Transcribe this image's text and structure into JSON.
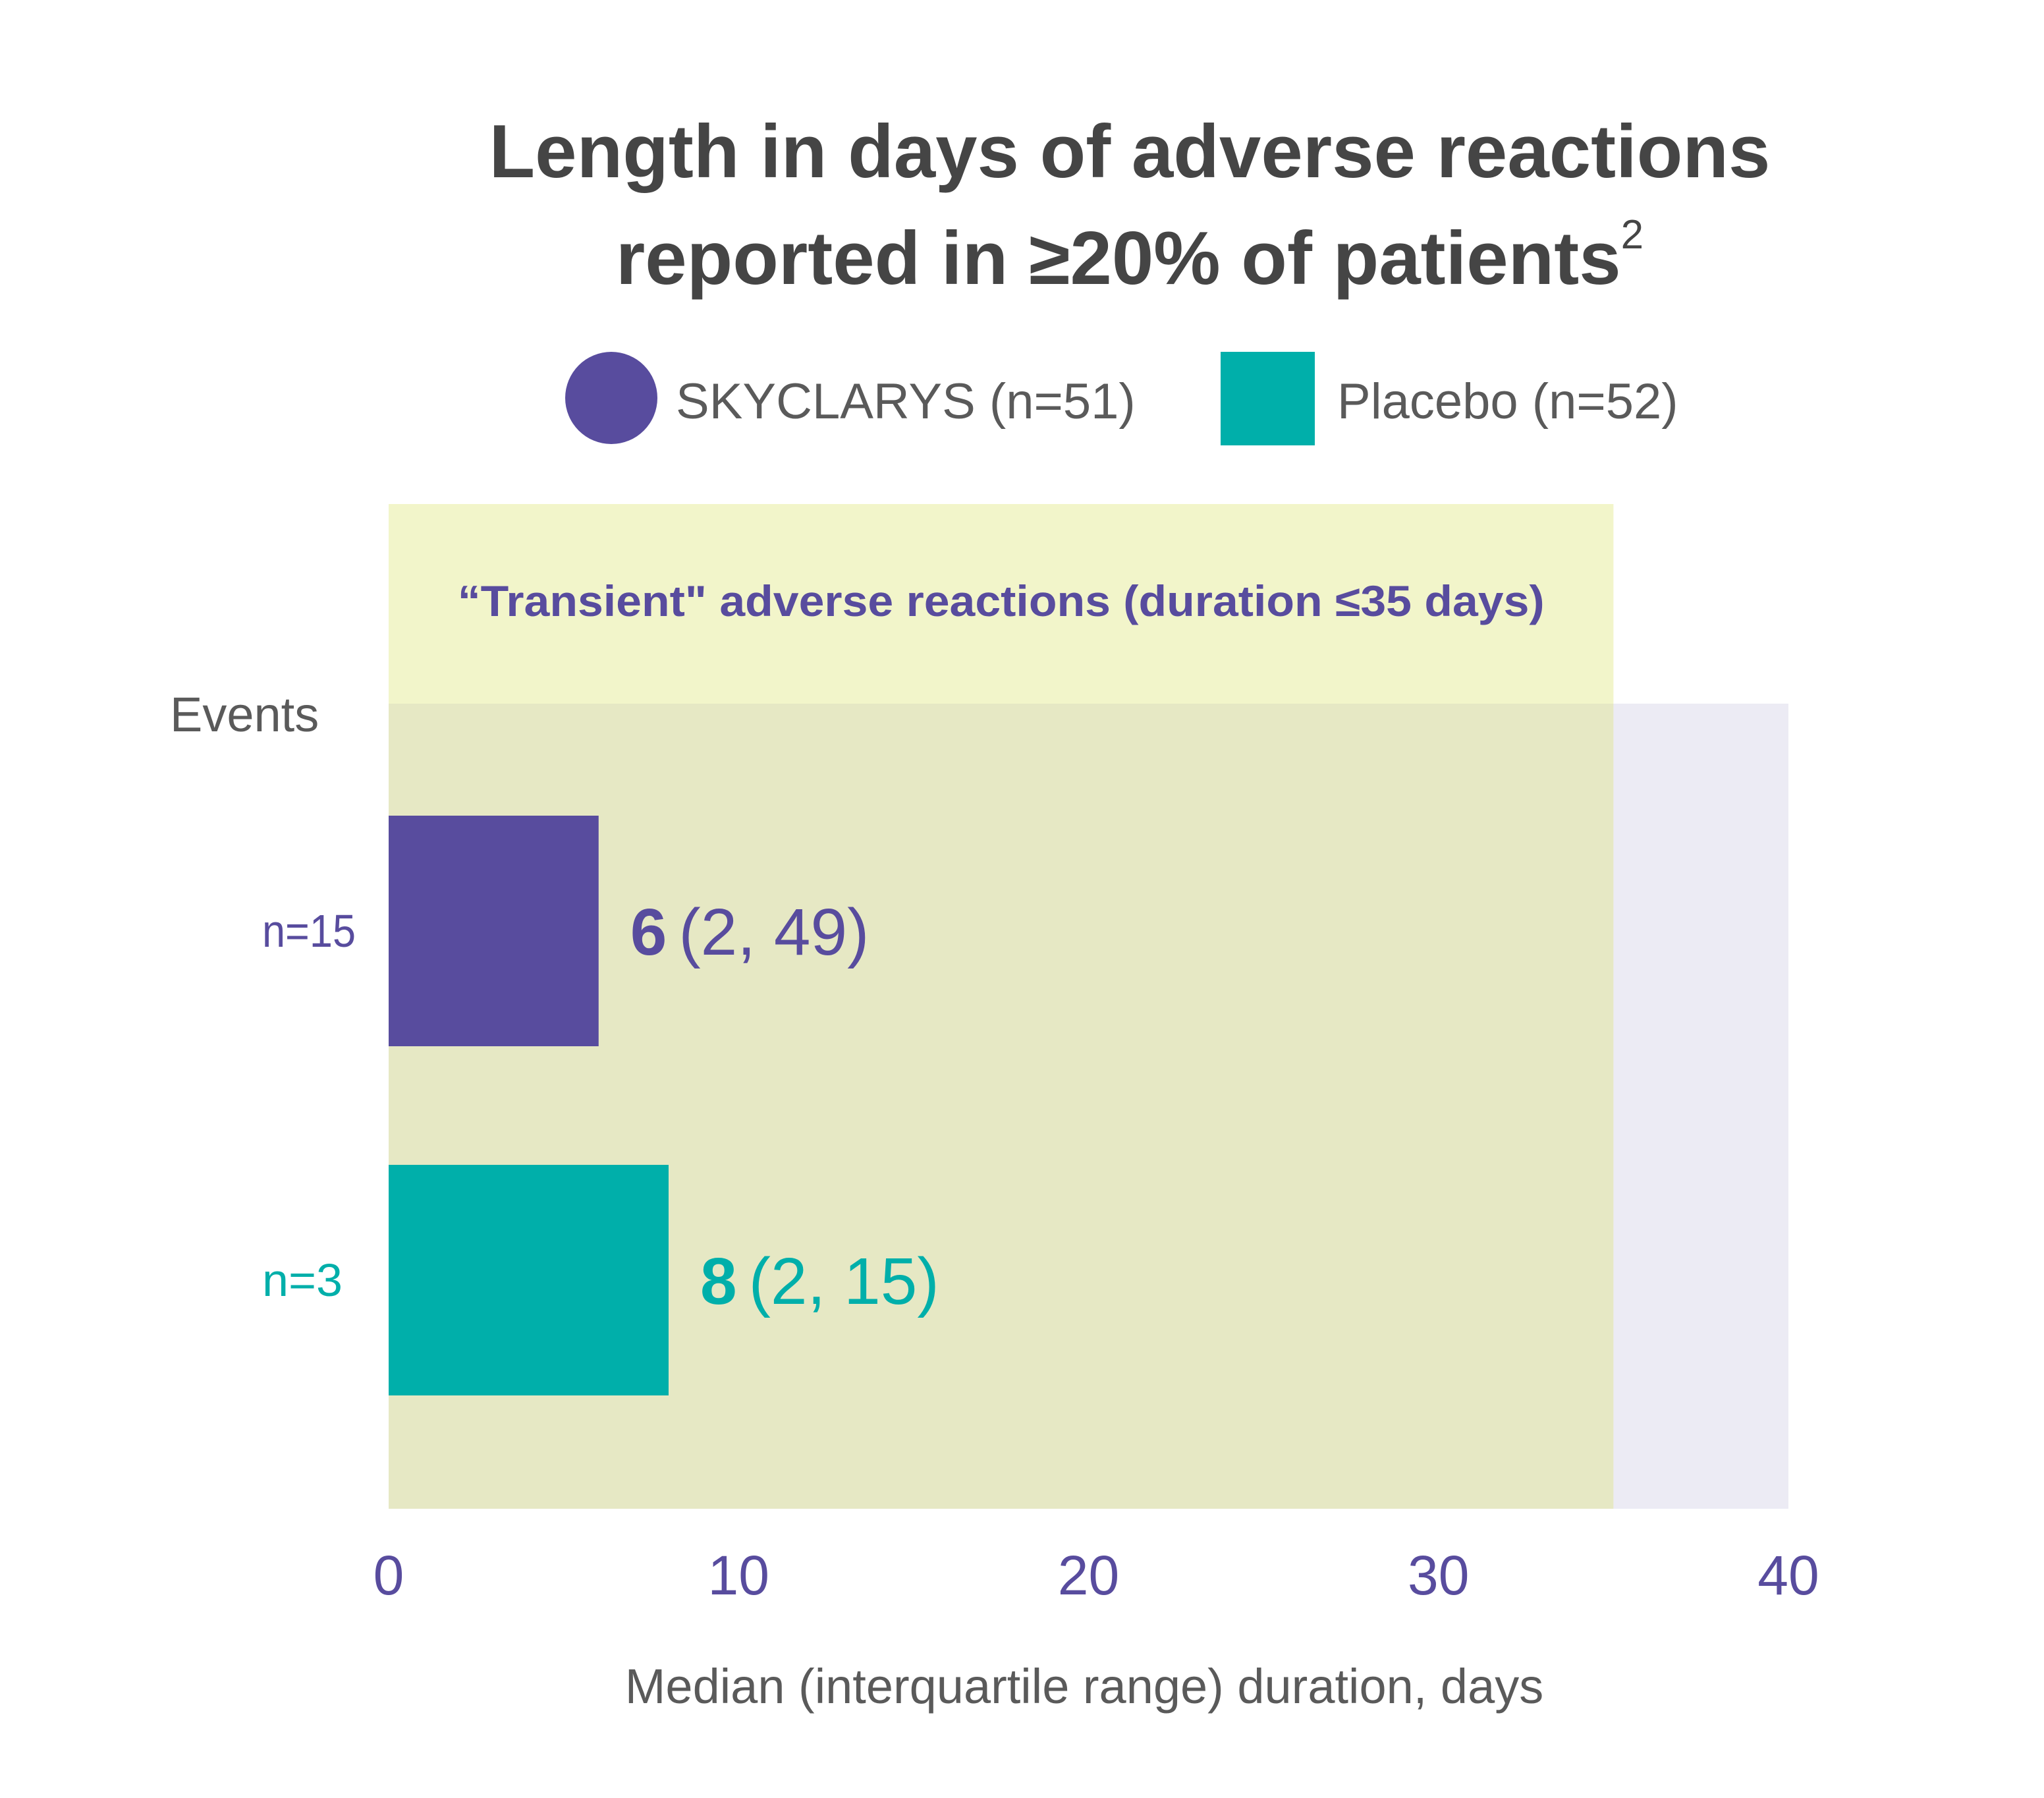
{
  "chart_data": {
    "type": "bar",
    "orientation": "horizontal",
    "title_line1": "Length in days of adverse reactions",
    "title_line2": "reported in ≥20% of patients",
    "title_superscript": "2",
    "xlabel": "Median (interquartile range) duration, days",
    "events_label": "Events",
    "xlim": [
      0,
      40
    ],
    "x_ticks": [
      "0",
      "10",
      "20",
      "30",
      "40"
    ],
    "x_tick_values": [
      0,
      10,
      20,
      30,
      40
    ],
    "shaded_region": {
      "label": "“Transient\" adverse reactions (duration ≤35 days)",
      "x_start": 0,
      "x_end": 35
    },
    "series": [
      {
        "name": "SKYCLARYS (n=51)",
        "events": "n=15",
        "median": 6,
        "median_label": "6",
        "iqr_label": "(2, 49)",
        "color": "#584C9E"
      },
      {
        "name": "Placebo (n=52)",
        "events": "n=3",
        "median": 8,
        "median_label": "8",
        "iqr_label": "(2, 15)",
        "color": "#00AFAA"
      }
    ],
    "grid": false,
    "legend_position": "top-center"
  },
  "colors": {
    "title": "#454545",
    "axis_text": "#584C9E",
    "label_gray": "#5a5a5a",
    "transient_band": "#F2F5CA",
    "plot_overlay": "#E6E8C4",
    "plot_background": "#ECEBF4"
  }
}
